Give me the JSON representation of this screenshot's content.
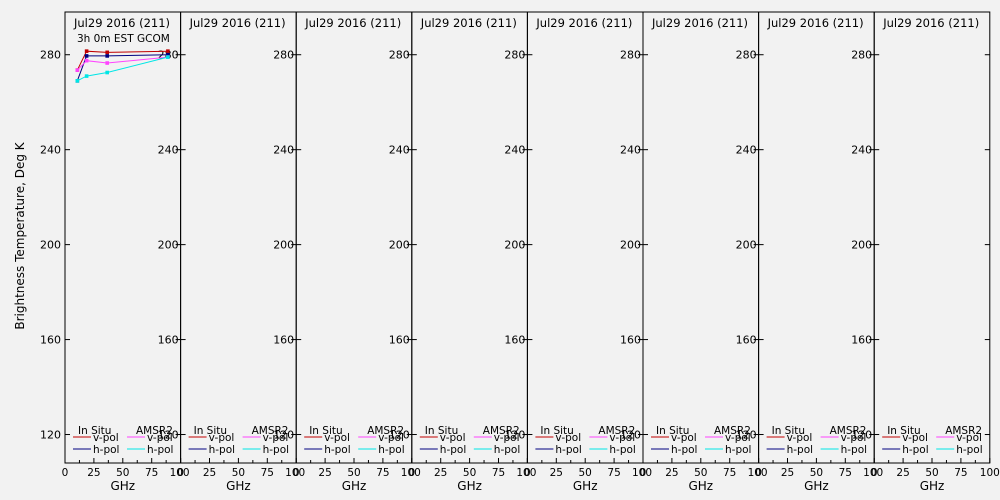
{
  "figure": {
    "ylabel": "Brightness Temperature, Deg K",
    "xlabel": "GHz"
  },
  "chart_data": {
    "type": "line",
    "ylim": [
      108,
      298
    ],
    "xlim": [
      0,
      100
    ],
    "yticks": [
      120,
      160,
      200,
      240,
      280
    ],
    "xticks": [
      0,
      25,
      50,
      75,
      100
    ],
    "grid": false,
    "legend_placement": "bottom",
    "legend": {
      "headers": [
        "In Situ",
        "AMSR2"
      ],
      "entries": [
        {
          "label": "v-pol",
          "color": "#c00000"
        },
        {
          "label": "v-pol",
          "color": "#ff44ff"
        },
        {
          "label": "h-pol",
          "color": "#000080"
        },
        {
          "label": "h-pol",
          "color": "#00e6e6"
        }
      ]
    },
    "panels": [
      {
        "date": "Jul29 2016 (211)",
        "time": "3h 0m EST GCOM",
        "series": [
          {
            "name": "In Situ v-pol",
            "color": "#c00000",
            "x": [
              10.65,
              18.7,
              36.5,
              89.0
            ],
            "y": [
              273.5,
              281.5,
              281.0,
              281.5
            ]
          },
          {
            "name": "In Situ h-pol",
            "color": "#000080",
            "x": [
              10.65,
              18.7,
              36.5,
              89.0
            ],
            "y": [
              269.0,
              279.5,
              279.5,
              280.0
            ]
          },
          {
            "name": "AMSR2 v-pol",
            "color": "#ff44ff",
            "x": [
              10.65,
              18.7,
              36.5,
              89.0
            ],
            "y": [
              273.5,
              277.5,
              276.5,
              279.0
            ]
          },
          {
            "name": "AMSR2 h-pol",
            "color": "#00e6e6",
            "x": [
              10.65,
              18.7,
              36.5,
              89.0
            ],
            "y": [
              269.0,
              271.0,
              272.5,
              279.0
            ]
          }
        ]
      },
      {
        "date": "Jul29 2016 (211)",
        "time": "",
        "series": []
      },
      {
        "date": "Jul29 2016 (211)",
        "time": "",
        "series": []
      },
      {
        "date": "Jul29 2016 (211)",
        "time": "",
        "series": []
      },
      {
        "date": "Jul29 2016 (211)",
        "time": "",
        "series": []
      },
      {
        "date": "Jul29 2016 (211)",
        "time": "",
        "series": []
      },
      {
        "date": "Jul29 2016 (211)",
        "time": "",
        "series": []
      },
      {
        "date": "Jul29 2016 (211)",
        "time": "",
        "series": []
      }
    ]
  }
}
